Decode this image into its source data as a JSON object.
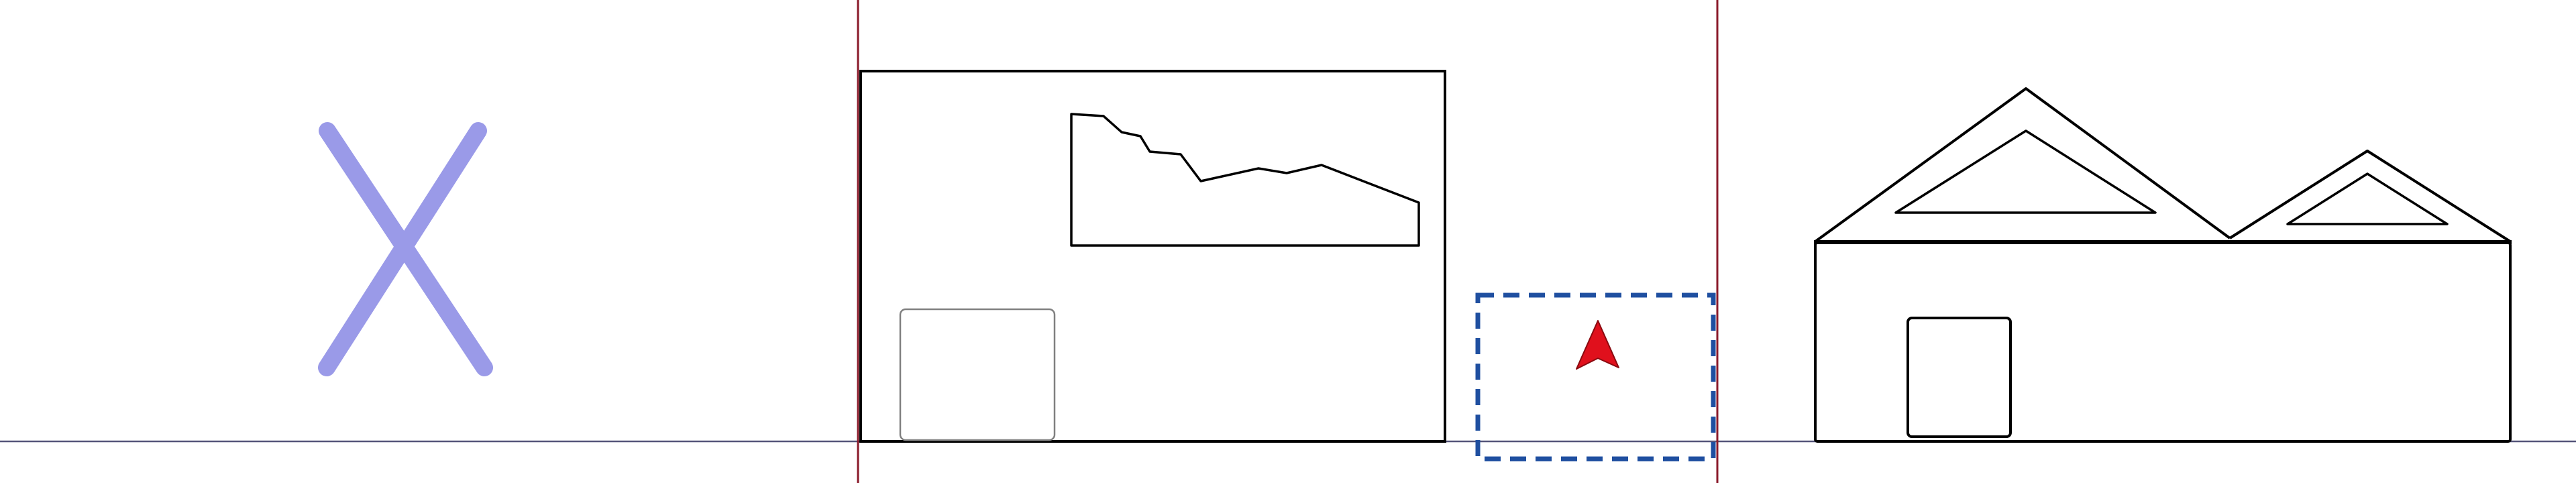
{
  "scene": {
    "description_labels": [],
    "colors": {
      "background": "#ffffff",
      "ground_line": "#55557a",
      "guide_lines": "#8a1a2a",
      "outline": "#000000",
      "panel_outline": "#808080",
      "cross_mark": "#9a9ae8",
      "selection_box": "#1f4fa0",
      "pointer_fill": "#e0101c",
      "pointer_stroke": "#8a0a10"
    },
    "icons": {
      "cross_mark": "close-x-icon",
      "pointer": "arrow-pointer-icon",
      "selection": "dashed-selection-box"
    }
  }
}
